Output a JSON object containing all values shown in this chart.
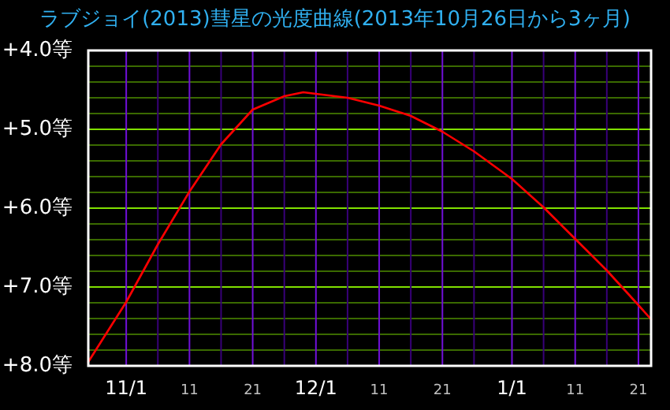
{
  "chart_data": {
    "type": "line",
    "title": "ラブジョイ(2013)彗星の光度曲線(2013年10月26日から3ヶ月)",
    "x": [
      "2013-10-26",
      "2013-11-01",
      "2013-11-06",
      "2013-11-11",
      "2013-11-16",
      "2013-11-21",
      "2013-11-26",
      "2013-11-29",
      "2013-12-01",
      "2013-12-06",
      "2013-12-11",
      "2013-12-16",
      "2013-12-21",
      "2013-12-26",
      "2014-01-01",
      "2014-01-06",
      "2014-01-11",
      "2014-01-16",
      "2014-01-21",
      "2014-01-23"
    ],
    "series": [
      {
        "color": "#ff0000",
        "values": [
          7.95,
          7.19,
          6.46,
          5.79,
          5.19,
          4.75,
          4.58,
          4.53,
          4.55,
          4.6,
          4.7,
          4.83,
          5.03,
          5.28,
          5.63,
          5.99,
          6.39,
          6.79,
          7.23,
          7.41
        ]
      }
    ],
    "xlim": [
      "2013-10-26",
      "2014-01-23"
    ],
    "ylim": [
      8,
      4
    ],
    "xticks": [
      {
        "value": "2013-11-01",
        "label": "11/1"
      },
      {
        "value": "2013-11-06",
        "label": null
      },
      {
        "value": "2013-11-11",
        "label": "11"
      },
      {
        "value": "2013-11-16",
        "label": null
      },
      {
        "value": "2013-11-21",
        "label": "21"
      },
      {
        "value": "2013-11-26",
        "label": null
      },
      {
        "value": "2013-12-01",
        "label": "12/1"
      },
      {
        "value": "2013-12-06",
        "label": null
      },
      {
        "value": "2013-12-11",
        "label": "11"
      },
      {
        "value": "2013-12-16",
        "label": null
      },
      {
        "value": "2013-12-21",
        "label": "21"
      },
      {
        "value": "2013-12-26",
        "label": null
      },
      {
        "value": "2014-01-01",
        "label": "1/1"
      },
      {
        "value": "2014-01-06",
        "label": null
      },
      {
        "value": "2014-01-11",
        "label": "11"
      },
      {
        "value": "2014-01-16",
        "label": null
      },
      {
        "value": "2014-01-21",
        "label": "21"
      }
    ],
    "yticks": [
      {
        "value": 4,
        "label": "+4.0等"
      },
      {
        "value": 4.2,
        "label": null
      },
      {
        "value": 4.4,
        "label": null
      },
      {
        "value": 4.6,
        "label": null
      },
      {
        "value": 4.8,
        "label": null
      },
      {
        "value": 5,
        "label": "+5.0等"
      },
      {
        "value": 5.2,
        "label": null
      },
      {
        "value": 5.4,
        "label": null
      },
      {
        "value": 5.6,
        "label": null
      },
      {
        "value": 5.8,
        "label": null
      },
      {
        "value": 6,
        "label": "+6.0等"
      },
      {
        "value": 6.2,
        "label": null
      },
      {
        "value": 6.4,
        "label": null
      },
      {
        "value": 6.6,
        "label": null
      },
      {
        "value": 6.8,
        "label": null
      },
      {
        "value": 7,
        "label": "+7.0等"
      },
      {
        "value": 7.2,
        "label": null
      },
      {
        "value": 7.4,
        "label": null
      },
      {
        "value": 7.6,
        "label": null
      },
      {
        "value": 7.8,
        "label": null
      },
      {
        "value": 8,
        "label": "+8.0等"
      }
    ],
    "grid": true
  }
}
